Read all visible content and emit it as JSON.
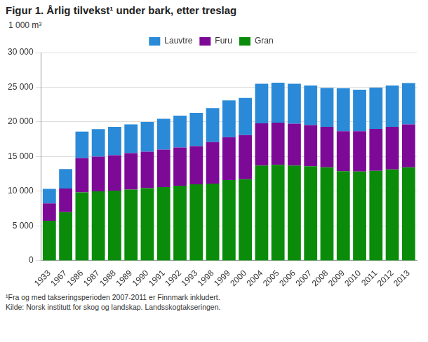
{
  "chart_data": {
    "type": "bar",
    "title": "Figur 1. Årlig tilvekst¹ under bark, etter treslag",
    "y_label": "1 000 m³",
    "notes": [
      "¹Fra og med takseringsperioden 2007-2011 er Finnmark inkludert.",
      "Kilde: Norsk institutt for skog og landskap. Landsskogtakseringen."
    ],
    "categories": [
      "1933",
      "1967",
      "1986",
      "1987",
      "1988",
      "1989",
      "1990",
      "1991",
      "1992",
      "1993",
      "1998",
      "1999",
      "2000",
      "2004",
      "2005",
      "2006",
      "2007",
      "2008",
      "2009",
      "2010",
      "2011",
      "2012",
      "2013"
    ],
    "series": [
      {
        "name": "Gran",
        "color": "#0a8c0a",
        "values": [
          5750,
          7000,
          9850,
          10000,
          10100,
          10250,
          10450,
          10600,
          10800,
          11000,
          11100,
          11600,
          11750,
          13700,
          13800,
          13700,
          13600,
          13450,
          12900,
          12850,
          12950,
          13150,
          13450
        ]
      },
      {
        "name": "Furu",
        "color": "#7d0a96",
        "values": [
          2500,
          3400,
          4950,
          5000,
          5100,
          5250,
          5250,
          5400,
          5500,
          5500,
          6000,
          6200,
          6350,
          6100,
          6100,
          6050,
          5950,
          5850,
          5750,
          5800,
          6050,
          6150,
          6200
        ]
      },
      {
        "name": "Lauvtre",
        "color": "#2a8ad8",
        "values": [
          2100,
          2800,
          3800,
          3950,
          4100,
          4150,
          4300,
          4450,
          4600,
          4800,
          4900,
          5300,
          5350,
          5700,
          5750,
          5750,
          5700,
          5600,
          6200,
          6000,
          5950,
          5950,
          5950
        ]
      }
    ],
    "stacked": true,
    "ylim": [
      0,
      30000
    ],
    "yticks": [
      0,
      {
        "value": 5000,
        "label": "5 000"
      },
      {
        "value": 10000,
        "label": "10 000"
      },
      {
        "value": 15000,
        "label": "15 000"
      },
      {
        "value": 20000,
        "label": "20 000"
      },
      {
        "value": 25000,
        "label": "25 000"
      },
      {
        "value": 30000,
        "label": "30 000"
      }
    ],
    "grid": true,
    "legend": "top"
  }
}
